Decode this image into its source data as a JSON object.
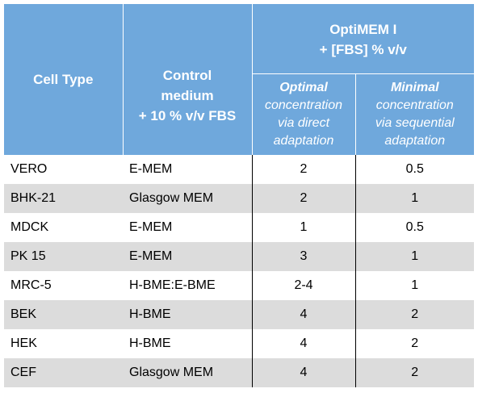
{
  "table": {
    "headers": {
      "cell_type": "Cell Type",
      "control": {
        "line1": "Control",
        "line2": "medium",
        "line3": "+ 10 % v/v FBS"
      },
      "optimem": {
        "line1": "OptiMEM I",
        "line2": "+ [FBS] % v/v"
      },
      "optimal": {
        "title": "Optimal",
        "line1": "concentration",
        "line2": "via direct",
        "line3": "adaptation"
      },
      "minimal": {
        "title": "Minimal",
        "line1": "concentration",
        "line2": "via sequential",
        "line3": "adaptation"
      }
    },
    "rows": [
      {
        "cell": "VERO",
        "control": "E-MEM",
        "optimal": "2",
        "minimal": "0.5"
      },
      {
        "cell": "BHK-21",
        "control": "Glasgow MEM",
        "optimal": "2",
        "minimal": "1"
      },
      {
        "cell": "MDCK",
        "control": "E-MEM",
        "optimal": "1",
        "minimal": "0.5"
      },
      {
        "cell": "PK 15",
        "control": "E-MEM",
        "optimal": "3",
        "minimal": "1"
      },
      {
        "cell": "MRC-5",
        "control": "H-BME:E-BME",
        "optimal": "2-4",
        "minimal": "1"
      },
      {
        "cell": "BEK",
        "control": "H-BME",
        "optimal": "4",
        "minimal": "2"
      },
      {
        "cell": "HEK",
        "control": "H-BME",
        "optimal": "4",
        "minimal": "2"
      },
      {
        "cell": "CEF",
        "control": "Glasgow MEM",
        "optimal": "4",
        "minimal": "2"
      }
    ]
  },
  "colors": {
    "header_bg": "#6fa8dc",
    "header_text": "#ffffff",
    "stripe": "#dcdcdc"
  }
}
